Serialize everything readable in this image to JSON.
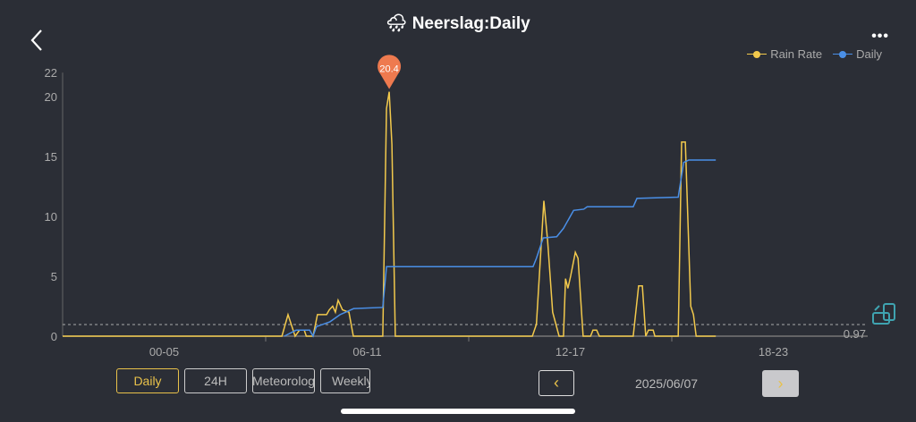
{
  "header": {
    "title": "Neerslag:Daily",
    "title_icon": "rain-cloud-icon",
    "back_icon": "chevron-left-icon",
    "more_label": "•••"
  },
  "legend": [
    {
      "name": "Rain Rate",
      "color": "#f2c94c"
    },
    {
      "name": "Daily",
      "color": "#4a8fe7"
    }
  ],
  "chart_data": {
    "type": "line",
    "x_unit": "hour of day",
    "xlim": [
      0,
      24
    ],
    "ylim": [
      0,
      22
    ],
    "yticks": [
      0,
      5,
      10,
      15,
      20,
      22
    ],
    "xtick_labels": [
      {
        "label": "00-05",
        "center": 3
      },
      {
        "label": "06-11",
        "center": 9
      },
      {
        "label": "12-17",
        "center": 15
      },
      {
        "label": "18-23",
        "center": 21
      }
    ],
    "reference_line": {
      "value": 0.97,
      "label": "0.97",
      "style": "dashed"
    },
    "max_marker": {
      "label": "20.4",
      "x": 9.65,
      "y": 20.4,
      "color": "#ee7a4f"
    },
    "series": [
      {
        "name": "Rain Rate",
        "color": "#f2c94c",
        "points": [
          [
            0,
            0
          ],
          [
            6.48,
            0
          ],
          [
            6.66,
            1.8
          ],
          [
            6.87,
            0
          ],
          [
            7.0,
            0.5
          ],
          [
            7.14,
            0.5
          ],
          [
            7.2,
            0
          ],
          [
            7.4,
            0
          ],
          [
            7.53,
            1.8
          ],
          [
            7.8,
            1.8
          ],
          [
            7.88,
            2.2
          ],
          [
            7.98,
            2.5
          ],
          [
            8.06,
            2.0
          ],
          [
            8.14,
            3.0
          ],
          [
            8.27,
            2.2
          ],
          [
            8.46,
            2.0
          ],
          [
            8.59,
            0
          ],
          [
            9.46,
            0
          ],
          [
            9.57,
            19
          ],
          [
            9.65,
            20.4
          ],
          [
            9.73,
            16
          ],
          [
            9.83,
            0
          ],
          [
            13.88,
            0
          ],
          [
            14.0,
            1
          ],
          [
            14.22,
            11.3
          ],
          [
            14.33,
            8
          ],
          [
            14.48,
            2
          ],
          [
            14.67,
            0
          ],
          [
            14.8,
            0
          ],
          [
            14.86,
            4.8
          ],
          [
            14.93,
            4
          ],
          [
            15.01,
            5
          ],
          [
            15.15,
            7
          ],
          [
            15.23,
            6.5
          ],
          [
            15.38,
            0
          ],
          [
            15.6,
            0
          ],
          [
            15.67,
            0.5
          ],
          [
            15.78,
            0.5
          ],
          [
            15.86,
            0
          ],
          [
            16.86,
            0
          ],
          [
            17.02,
            4.2
          ],
          [
            17.13,
            4.2
          ],
          [
            17.23,
            0
          ],
          [
            17.31,
            0.5
          ],
          [
            17.45,
            0.5
          ],
          [
            17.5,
            0
          ],
          [
            18.19,
            0
          ],
          [
            18.29,
            16.2
          ],
          [
            18.4,
            16.2
          ],
          [
            18.56,
            2.5
          ],
          [
            18.64,
            1.8
          ],
          [
            18.72,
            0
          ],
          [
            19.3,
            0
          ]
        ]
      },
      {
        "name": "Daily",
        "color": "#4a8fe7",
        "points": [
          [
            6.55,
            0
          ],
          [
            6.9,
            0.5
          ],
          [
            7.3,
            0.5
          ],
          [
            7.4,
            0
          ],
          [
            7.5,
            0.8
          ],
          [
            7.9,
            1.2
          ],
          [
            8.2,
            1.8
          ],
          [
            8.6,
            2.3
          ],
          [
            9.46,
            2.4
          ],
          [
            9.57,
            5.8
          ],
          [
            13.9,
            5.8
          ],
          [
            14.0,
            6.5
          ],
          [
            14.2,
            8.2
          ],
          [
            14.6,
            8.3
          ],
          [
            14.8,
            9
          ],
          [
            15.1,
            10.5
          ],
          [
            15.4,
            10.6
          ],
          [
            15.5,
            10.8
          ],
          [
            16.86,
            10.8
          ],
          [
            16.97,
            11.5
          ],
          [
            18.19,
            11.6
          ],
          [
            18.35,
            14.5
          ],
          [
            18.5,
            14.7
          ],
          [
            19.3,
            14.7
          ]
        ]
      }
    ]
  },
  "controls": {
    "tabs": [
      {
        "label": "Daily",
        "active": true
      },
      {
        "label": "24H"
      },
      {
        "label": "Meteorolog"
      },
      {
        "label": "Weekly"
      }
    ],
    "prev_label": "‹",
    "next_label": "›",
    "date": "2025/06/07"
  }
}
